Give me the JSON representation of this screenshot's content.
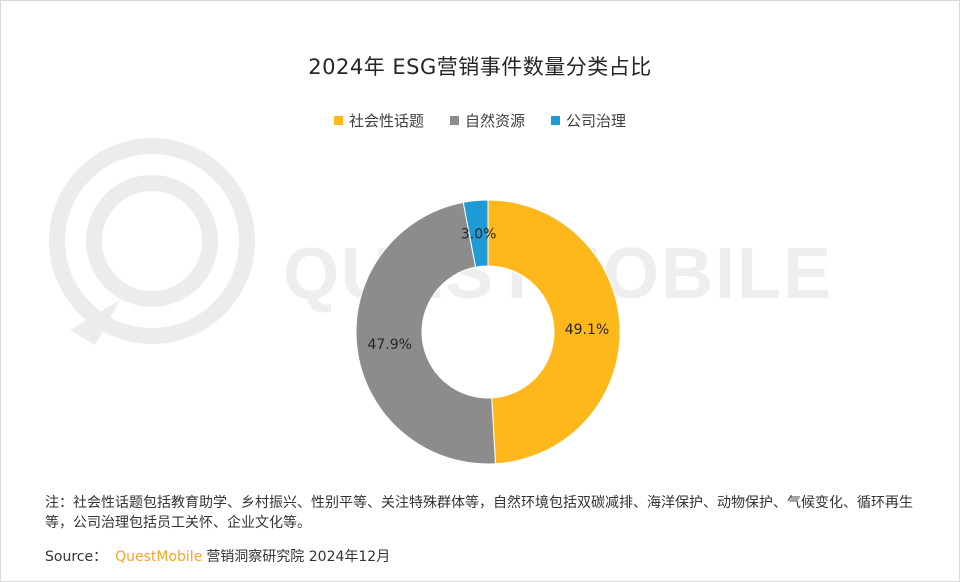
{
  "chart_data": {
    "type": "pie",
    "variant": "donut",
    "title": "2024年 ESG营销事件数量分类占比",
    "legend_position": "top",
    "series": [
      {
        "name": "社会性话题",
        "value": 49.1,
        "label": "49.1%",
        "color": "#FFB81C"
      },
      {
        "name": "自然资源",
        "value": 47.9,
        "label": "47.9%",
        "color": "#8C8C8C"
      },
      {
        "name": "公司治理",
        "value": 3.0,
        "label": "3.0%",
        "color": "#1E9BD7"
      }
    ]
  },
  "footer": {
    "note": "注：社会性话题包括教育助学、乡村振兴、性别平等、关注特殊群体等，自然环境包括双碳减排、海洋保护、动物保护、气候变化、循环再生等，公司治理包括员工关怀、企业文化等。",
    "source_label": "Source：",
    "source_brand": "QuestMobile",
    "source_rest": "营销洞察研究院 2024年12月"
  },
  "watermark": {
    "text": "QUESTMOBILE"
  }
}
